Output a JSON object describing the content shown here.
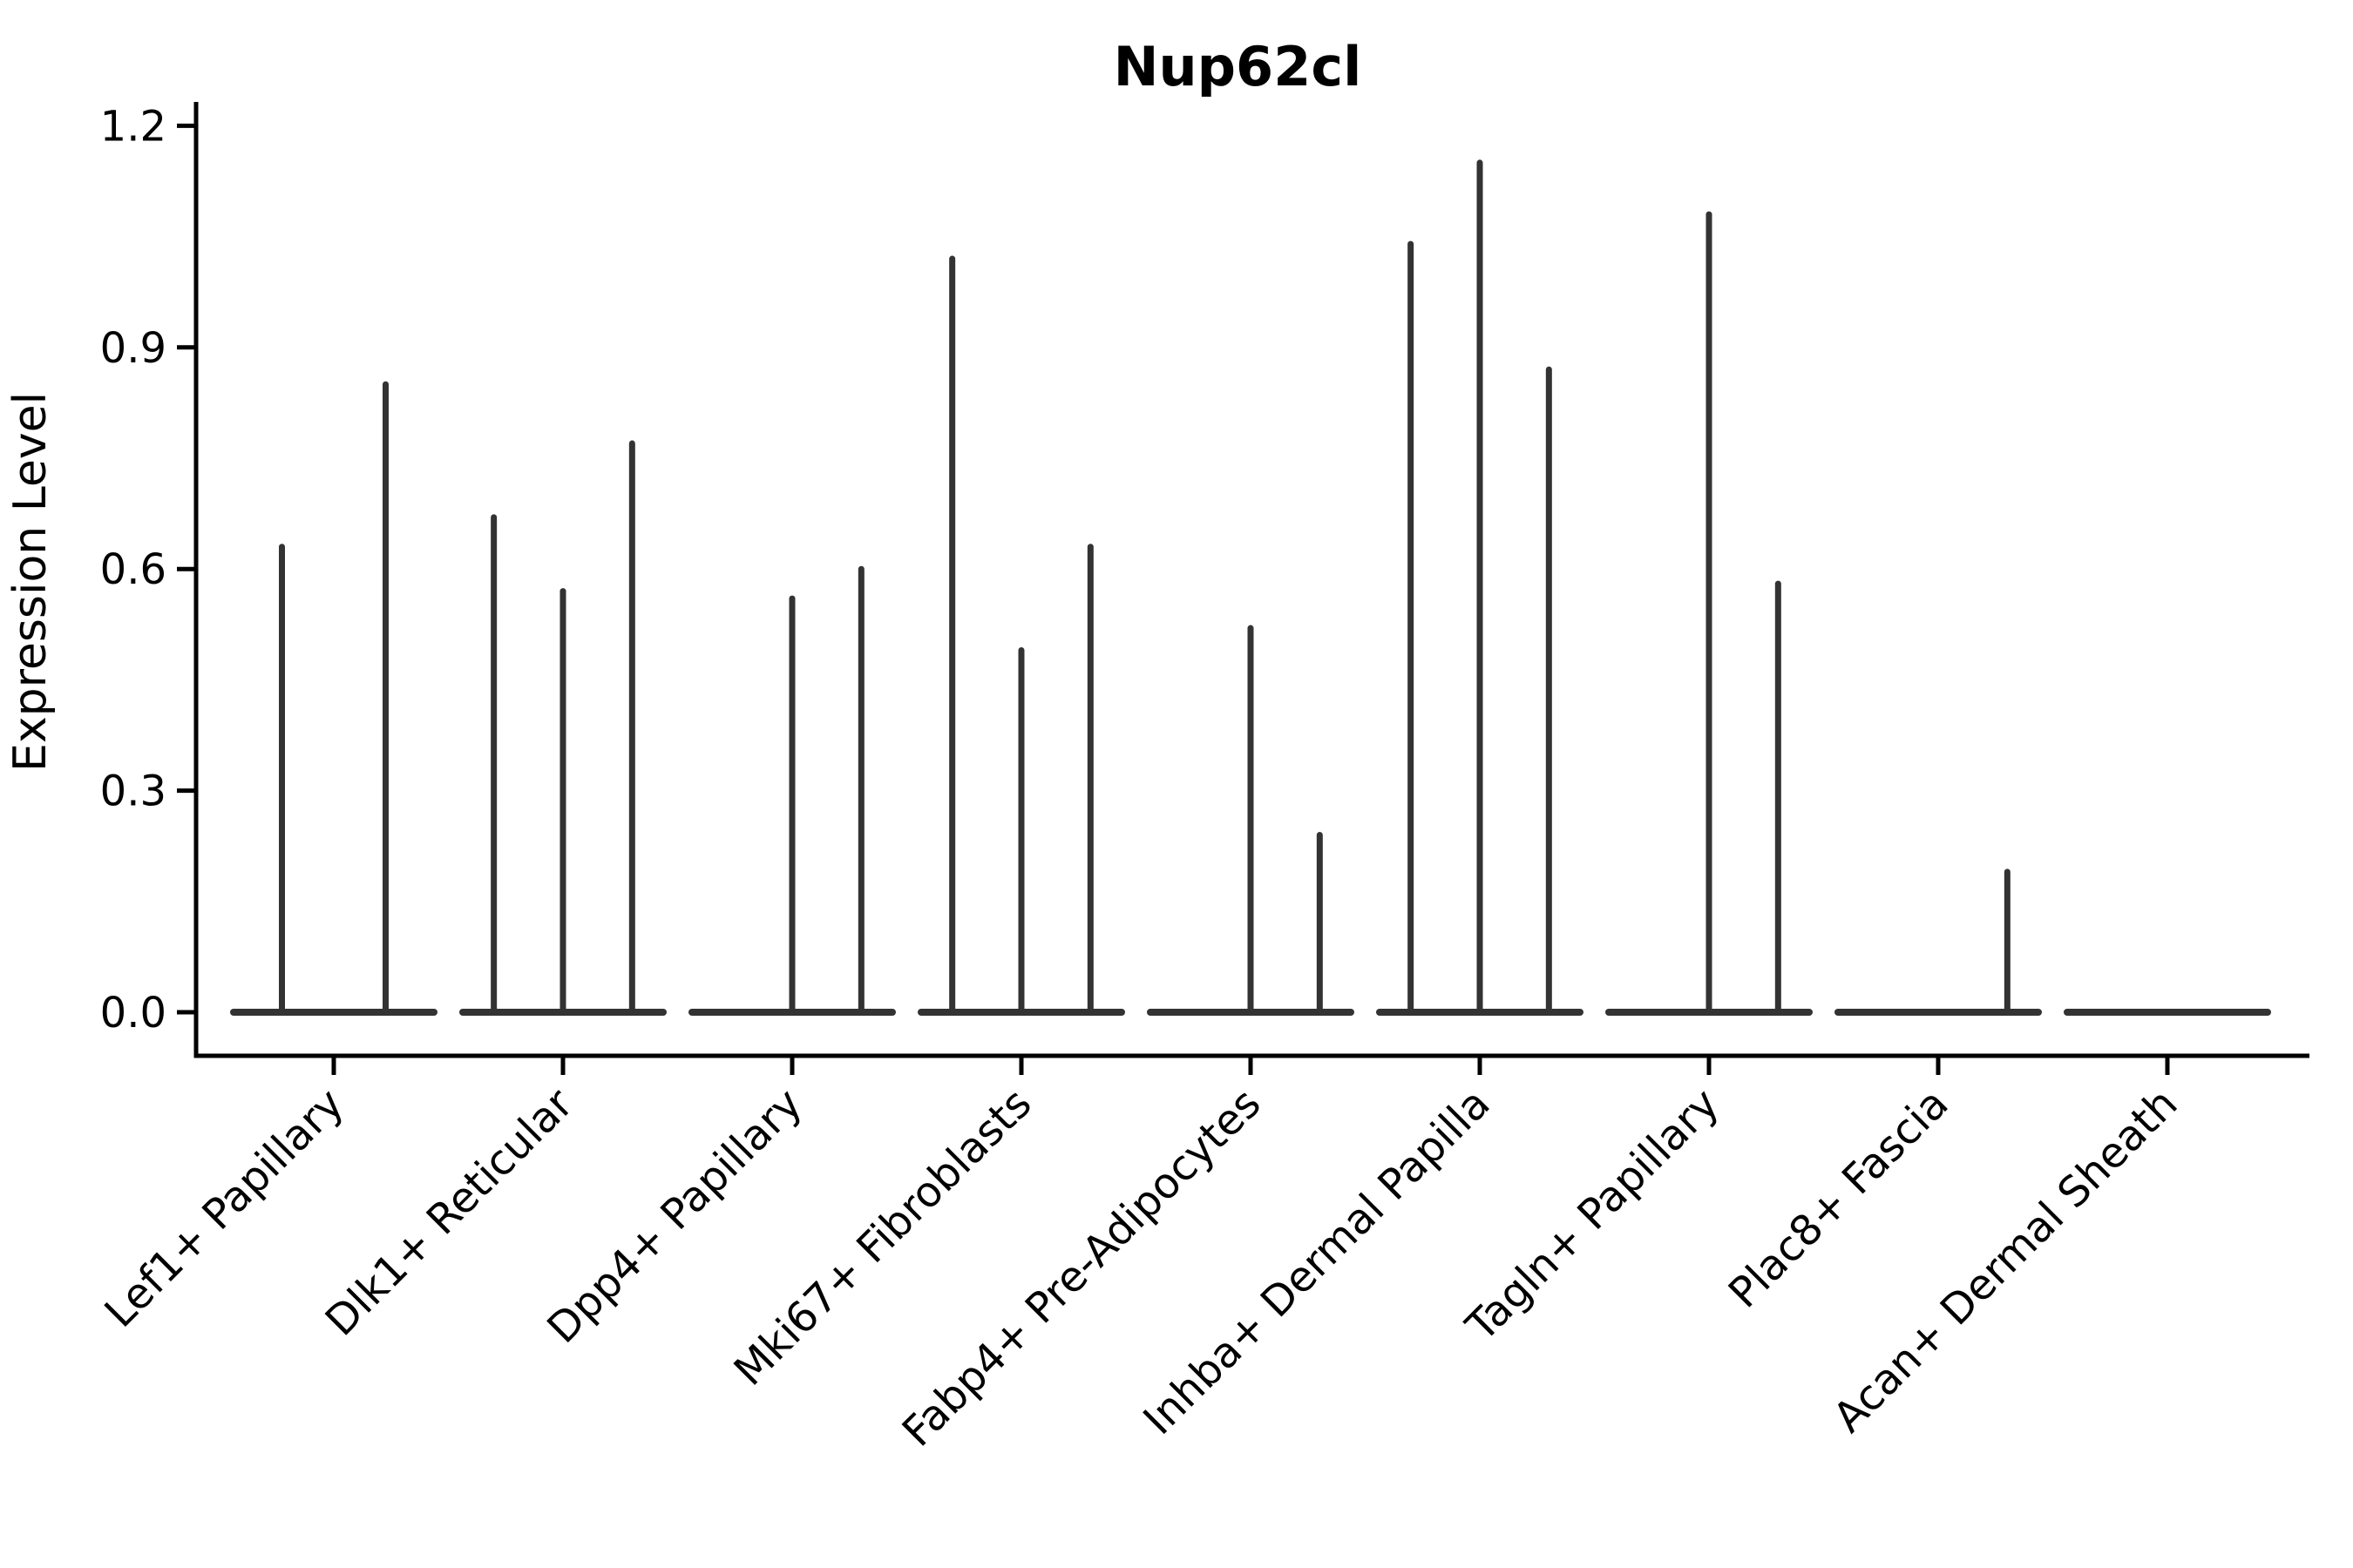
{
  "chart_data": {
    "type": "violin",
    "title": "Nup62cl",
    "ylabel": "Expression Level",
    "xlabel": "",
    "ylim": [
      0.0,
      1.2
    ],
    "yticks": [
      0.0,
      0.3,
      0.6,
      0.9,
      1.2
    ],
    "ytick_labels": [
      "0.0",
      "0.3",
      "0.6",
      "0.9",
      "1.2"
    ],
    "grid": false,
    "legend": "none",
    "categories": [
      "Lef1+ Papillary",
      "Dlk1+ Reticular",
      "Dpp4+ Papillary",
      "Mki67+ Fibroblasts",
      "Fabp4+ Pre-Adipocytes",
      "Inhba+ Dermal Papilla",
      "Tagln+ Papillary",
      "Plac8+ Fascia",
      "Acan+ Dermal Sheath"
    ],
    "violin_groups": [
      {
        "label": "Lef1+ Papillary",
        "slots": 2,
        "spikes": [
          {
            "slot": 0,
            "max": 0.63
          },
          {
            "slot": 1,
            "max": 0.85
          }
        ]
      },
      {
        "label": "Dlk1+ Reticular",
        "slots": 3,
        "spikes": [
          {
            "slot": 0,
            "max": 0.67
          },
          {
            "slot": 1,
            "max": 0.57
          },
          {
            "slot": 2,
            "max": 0.77
          }
        ]
      },
      {
        "label": "Dpp4+ Papillary",
        "slots": 3,
        "spikes": [
          {
            "slot": 1,
            "max": 0.56
          },
          {
            "slot": 2,
            "max": 0.6
          }
        ]
      },
      {
        "label": "Mki67+ Fibroblasts",
        "slots": 3,
        "spikes": [
          {
            "slot": 0,
            "max": 1.02
          },
          {
            "slot": 1,
            "max": 0.49
          },
          {
            "slot": 2,
            "max": 0.63
          }
        ]
      },
      {
        "label": "Fabp4+ Pre-Adipocytes",
        "slots": 3,
        "spikes": [
          {
            "slot": 1,
            "max": 0.52
          },
          {
            "slot": 2,
            "max": 0.24
          }
        ]
      },
      {
        "label": "Inhba+ Dermal Papilla",
        "slots": 3,
        "spikes": [
          {
            "slot": 0,
            "max": 1.04
          },
          {
            "slot": 1,
            "max": 1.15
          },
          {
            "slot": 2,
            "max": 0.87
          }
        ]
      },
      {
        "label": "Tagln+ Papillary",
        "slots": 3,
        "spikes": [
          {
            "slot": 1,
            "max": 1.08
          },
          {
            "slot": 2,
            "max": 0.58
          }
        ]
      },
      {
        "label": "Plac8+ Fascia",
        "slots": 3,
        "spikes": [
          {
            "slot": 2,
            "max": 0.19
          }
        ]
      },
      {
        "label": "Acan+ Dermal Sheath",
        "slots": 3,
        "spikes": []
      }
    ],
    "colors": {
      "violin": "#333333",
      "axis": "#000000",
      "text": "#000000",
      "background": "#ffffff"
    }
  }
}
